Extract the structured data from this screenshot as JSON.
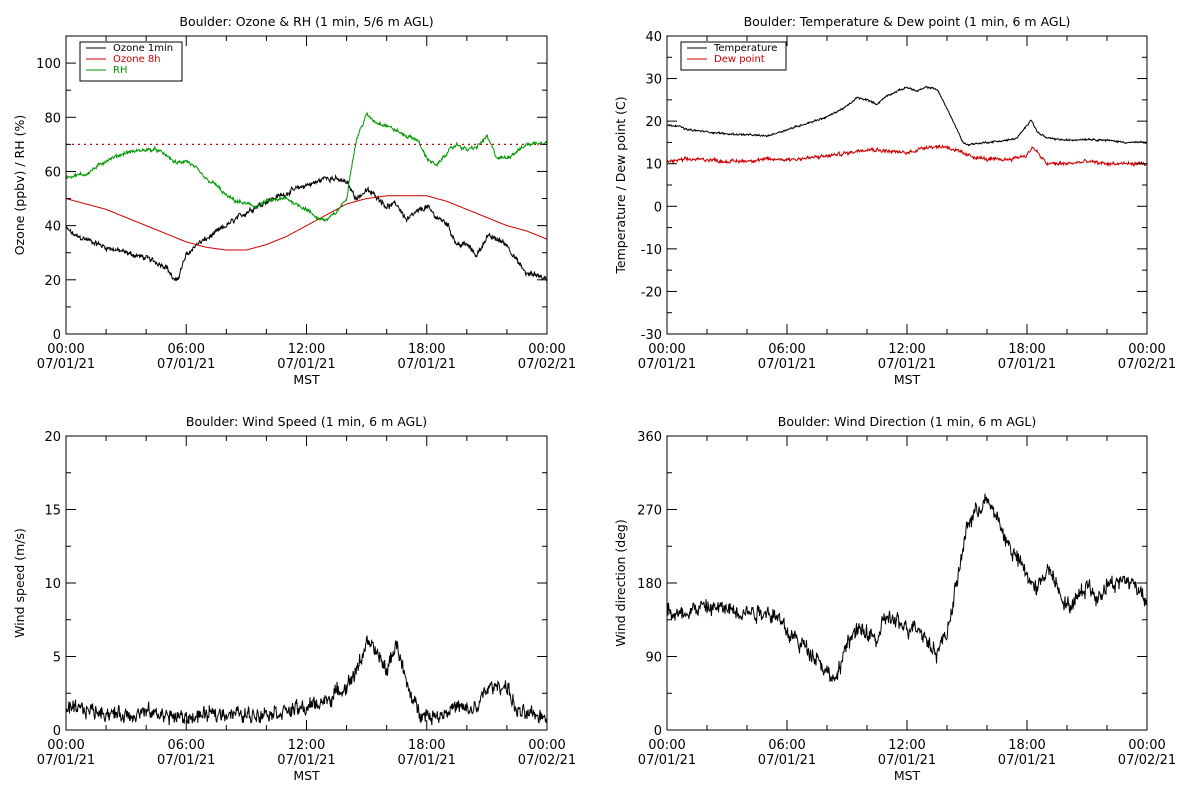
{
  "colors": {
    "black": "#000000",
    "red": "#cc0000",
    "green": "#009900",
    "background": "#ffffff"
  },
  "chart_data": [
    {
      "type": "line",
      "title": "Boulder: Ozone & RH (1 min, 5/6 m AGL)",
      "xlabel": "MST",
      "ylabel": "Ozone (ppbv) / RH (%)",
      "xlim": [
        0,
        24
      ],
      "ylim": [
        0,
        110
      ],
      "x_ticks": [
        {
          "x": 0,
          "time": "00:00",
          "date": "07/01/21"
        },
        {
          "x": 6,
          "time": "06:00",
          "date": "07/01/21"
        },
        {
          "x": 12,
          "time": "12:00",
          "date": "07/01/21"
        },
        {
          "x": 18,
          "time": "18:00",
          "date": "07/01/21"
        },
        {
          "x": 24,
          "time": "00:00",
          "date": "07/02/21"
        }
      ],
      "y_ticks": [
        "0",
        "20",
        "40",
        "60",
        "80",
        "100"
      ],
      "grid": false,
      "legend_position": "top-left",
      "reference_line": {
        "y": 70,
        "style": "dotted",
        "color": "#cc0000"
      },
      "series": [
        {
          "name": "Ozone 1min",
          "color": "#000000",
          "noise": 1.2,
          "x": [
            0,
            0.5,
            1,
            2,
            3,
            4,
            5,
            5.3,
            5.5,
            6,
            6.5,
            7,
            8,
            9,
            10,
            11,
            12,
            12.5,
            13,
            13.5,
            14,
            14.5,
            15,
            15.5,
            16,
            16.5,
            17,
            17.5,
            18,
            18.5,
            19,
            19.5,
            20,
            20.5,
            21,
            21.5,
            22,
            22.5,
            23,
            23.5,
            24
          ],
          "y": [
            39,
            36,
            35,
            32,
            30,
            28,
            25,
            21,
            19,
            29,
            33,
            35,
            40,
            45,
            49,
            52,
            55,
            56,
            58,
            57,
            56,
            50,
            53,
            51,
            47,
            48,
            42,
            45,
            47,
            43,
            41,
            33,
            33,
            29,
            36,
            35,
            33,
            27,
            22,
            22,
            20
          ]
        },
        {
          "name": "Ozone 8h",
          "color": "#cc0000",
          "noise": 0,
          "x": [
            0,
            1,
            2,
            3,
            4,
            5,
            6,
            7,
            8,
            9,
            10,
            11,
            12,
            13,
            14,
            15,
            16,
            17,
            18,
            19,
            20,
            21,
            22,
            23,
            24
          ],
          "y": [
            50,
            48,
            46,
            43,
            40,
            37,
            34,
            32,
            31,
            31,
            33,
            36,
            40,
            44,
            48,
            50,
            51,
            51,
            51,
            49,
            46,
            43,
            40,
            38,
            35
          ]
        },
        {
          "name": "RH",
          "color": "#009900",
          "noise": 0.8,
          "x": [
            0,
            1,
            2,
            3,
            4,
            4.5,
            5,
            5.5,
            6,
            6.5,
            7,
            7.5,
            8,
            8.5,
            9,
            9.5,
            10,
            11,
            11.5,
            12,
            12.5,
            13,
            13.5,
            14,
            14.2,
            14.5,
            15,
            15.5,
            16,
            16.5,
            17,
            17.5,
            18,
            18.5,
            19,
            19.5,
            20,
            20.5,
            21,
            21.5,
            22,
            23,
            24
          ],
          "y": [
            58,
            59,
            64,
            67,
            68,
            68,
            66,
            63,
            64,
            61,
            57,
            55,
            51,
            49,
            48,
            47,
            49,
            50,
            48,
            46,
            43,
            42,
            45,
            50,
            60,
            72,
            81,
            78,
            77,
            75,
            73,
            72,
            65,
            62,
            67,
            70,
            68,
            69,
            73,
            65,
            65,
            70,
            71
          ]
        }
      ]
    },
    {
      "type": "line",
      "title": "Boulder: Temperature & Dew point (1 min, 6 m AGL)",
      "xlabel": "MST",
      "ylabel": "Temperature / Dew point (C)",
      "xlim": [
        0,
        24
      ],
      "ylim": [
        -30,
        40
      ],
      "x_ticks": [
        {
          "x": 0,
          "time": "00:00",
          "date": "07/01/21"
        },
        {
          "x": 6,
          "time": "06:00",
          "date": "07/01/21"
        },
        {
          "x": 12,
          "time": "12:00",
          "date": "07/01/21"
        },
        {
          "x": 18,
          "time": "18:00",
          "date": "07/01/21"
        },
        {
          "x": 24,
          "time": "00:00",
          "date": "07/02/21"
        }
      ],
      "y_ticks": [
        "-30",
        "-20",
        "-10",
        "0",
        "10",
        "20",
        "30",
        "40"
      ],
      "grid": false,
      "legend_position": "top-left",
      "series": [
        {
          "name": "Temperature",
          "color": "#000000",
          "noise": 0.25,
          "x": [
            0,
            0.5,
            1,
            2,
            3,
            4,
            5,
            6,
            7,
            8,
            9,
            9.5,
            10,
            10.5,
            11,
            11.5,
            12,
            12.5,
            13,
            13.5,
            14,
            14.5,
            14.8,
            15,
            16,
            17,
            17.5,
            18,
            18.2,
            18.5,
            19,
            20,
            21,
            22,
            23,
            24
          ],
          "y": [
            19,
            19,
            18,
            17.5,
            17,
            16.8,
            16.5,
            18,
            19.5,
            21,
            23.5,
            25.5,
            25,
            24,
            26,
            27,
            28,
            27,
            28,
            27.5,
            23,
            18,
            15,
            14.5,
            15,
            15.5,
            16,
            19,
            20.5,
            17.5,
            16,
            15.5,
            15.8,
            15.5,
            15,
            15
          ]
        },
        {
          "name": "Dew point",
          "color": "#cc0000",
          "noise": 0.5,
          "x": [
            0,
            1,
            2,
            3,
            4,
            5,
            6,
            7,
            8,
            9,
            10,
            11,
            12,
            13,
            14,
            15,
            16,
            17,
            18,
            18.3,
            18.7,
            19,
            20,
            21,
            22,
            23,
            24
          ],
          "y": [
            10.5,
            11,
            11,
            10.5,
            10.7,
            11,
            11,
            11.3,
            11.8,
            12.5,
            13.5,
            13,
            12.5,
            14,
            14,
            12,
            11,
            11,
            12,
            14,
            11.5,
            10,
            10,
            10.5,
            10,
            10,
            10
          ]
        }
      ]
    },
    {
      "type": "line",
      "title": "Boulder: Wind Speed (1 min, 6 m AGL)",
      "xlabel": "MST",
      "ylabel": "Wind speed (m/s)",
      "xlim": [
        0,
        24
      ],
      "ylim": [
        0,
        20
      ],
      "x_ticks": [
        {
          "x": 0,
          "time": "00:00",
          "date": "07/01/21"
        },
        {
          "x": 6,
          "time": "06:00",
          "date": "07/01/21"
        },
        {
          "x": 12,
          "time": "12:00",
          "date": "07/01/21"
        },
        {
          "x": 18,
          "time": "18:00",
          "date": "07/01/21"
        },
        {
          "x": 24,
          "time": "00:00",
          "date": "07/02/21"
        }
      ],
      "y_ticks": [
        "0",
        "5",
        "10",
        "15",
        "20"
      ],
      "grid": false,
      "legend_position": "none",
      "series": [
        {
          "color": "#000000",
          "noise": 0.6,
          "x": [
            0,
            1,
            2,
            3,
            4,
            5,
            6,
            7,
            8,
            9,
            10,
            11,
            12,
            12.5,
            13,
            13.5,
            14,
            14.5,
            15,
            15.3,
            15.6,
            16,
            16.5,
            17,
            17.5,
            18,
            18.5,
            19,
            19.5,
            20,
            20.5,
            21,
            21.5,
            22,
            22.5,
            23,
            24
          ],
          "y": [
            1.3,
            1.4,
            1.2,
            1.0,
            1.2,
            1.0,
            0.8,
            1.0,
            1.2,
            1.0,
            1.2,
            1.3,
            1.5,
            1.8,
            2.0,
            2.5,
            3,
            4,
            6,
            5.5,
            5,
            4,
            6,
            3,
            1.5,
            1,
            1,
            1.3,
            1.6,
            1.3,
            1.5,
            2.8,
            3,
            3,
            1.2,
            1.0,
            1.0
          ]
        }
      ]
    },
    {
      "type": "line",
      "title": "Boulder: Wind Direction (1 min, 6 m AGL)",
      "xlabel": "MST",
      "ylabel": "Wind direction (deg)",
      "xlim": [
        0,
        24
      ],
      "ylim": [
        0,
        360
      ],
      "x_ticks": [
        {
          "x": 0,
          "time": "00:00",
          "date": "07/01/21"
        },
        {
          "x": 6,
          "time": "06:00",
          "date": "07/01/21"
        },
        {
          "x": 12,
          "time": "12:00",
          "date": "07/01/21"
        },
        {
          "x": 18,
          "time": "18:00",
          "date": "07/01/21"
        },
        {
          "x": 24,
          "time": "00:00",
          "date": "07/02/21"
        }
      ],
      "y_ticks": [
        "0",
        "90",
        "180",
        "270",
        "360"
      ],
      "grid": false,
      "legend_position": "none",
      "series": [
        {
          "color": "#000000",
          "noise": 12,
          "x": [
            0,
            0.5,
            1,
            1.5,
            2,
            3,
            4,
            5,
            5.5,
            6,
            6.5,
            7,
            7.5,
            8,
            8.5,
            9,
            9.5,
            10,
            10.5,
            11,
            11.5,
            12,
            12.5,
            13,
            13.5,
            14,
            14.5,
            15,
            15.5,
            16,
            16.5,
            17,
            17.5,
            18,
            18.5,
            19,
            19.5,
            20,
            20.5,
            21,
            21.5,
            22,
            22.5,
            23,
            23.5,
            24
          ],
          "y": [
            150,
            140,
            145,
            150,
            150,
            148,
            145,
            145,
            140,
            120,
            110,
            100,
            90,
            70,
            60,
            110,
            120,
            120,
            110,
            140,
            130,
            125,
            130,
            110,
            95,
            120,
            180,
            250,
            270,
            280,
            260,
            230,
            210,
            190,
            170,
            200,
            180,
            150,
            160,
            180,
            160,
            180,
            180,
            185,
            175,
            160
          ]
        }
      ]
    }
  ]
}
